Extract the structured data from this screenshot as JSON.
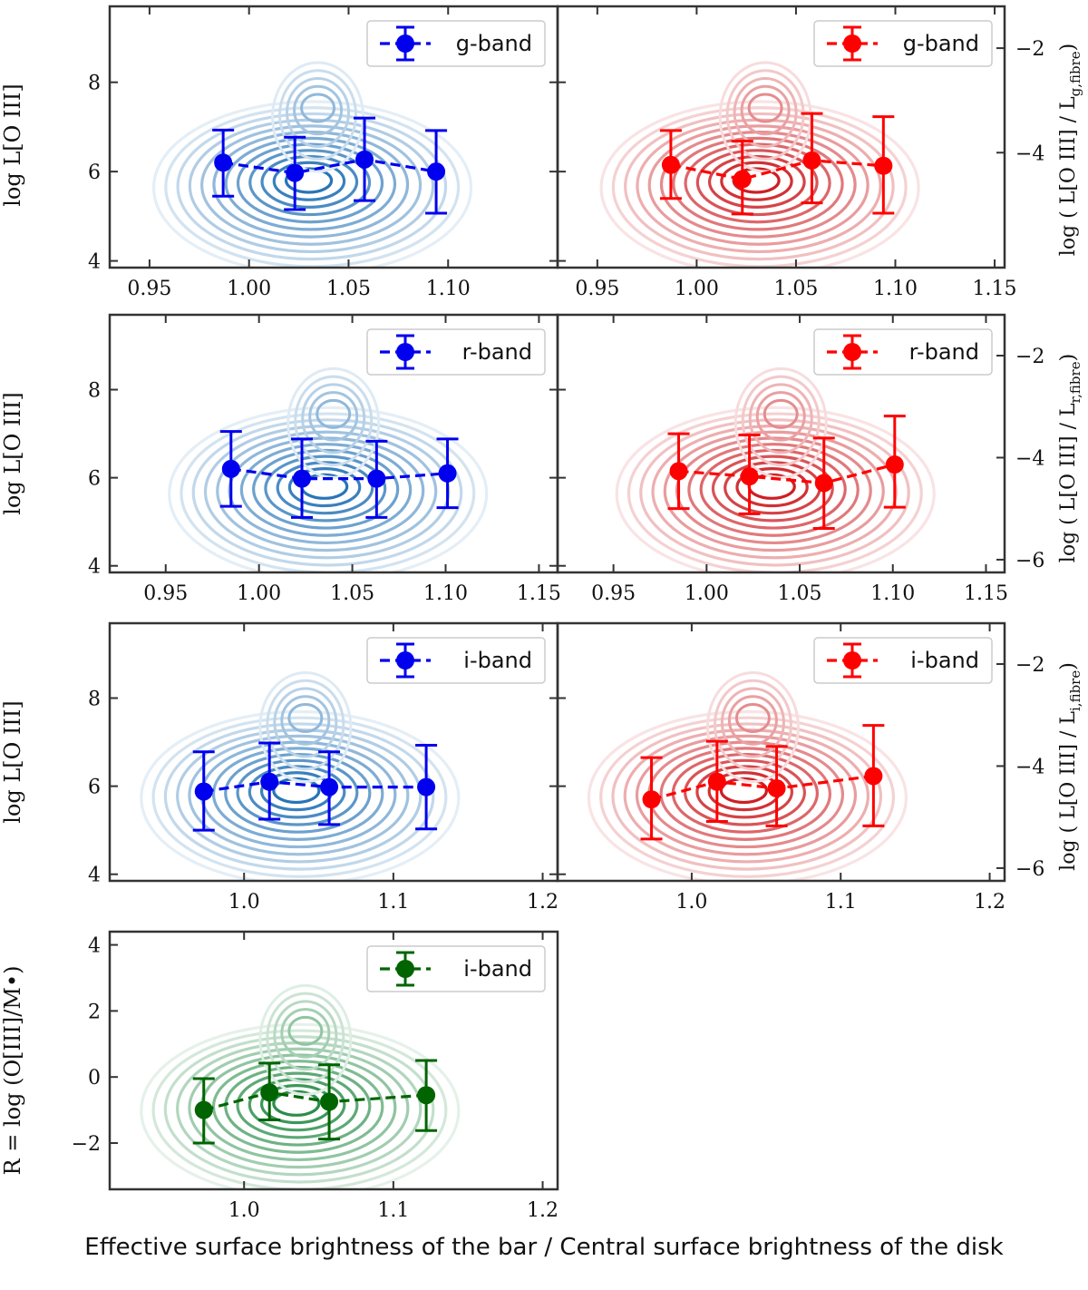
{
  "figure": {
    "xlabel": "Effective surface brightness of the bar / Central surface brightness of the disk",
    "left_ylabel": "log L[O III]",
    "right_ylabels": [
      "log ( L[O III] / L",
      "g,fibre",
      "r,fibre",
      "i,fibre",
      ")"
    ],
    "bottom_ylabel": "R = log (O[III]/M•)"
  },
  "colors": {
    "blue": "#0000ee",
    "red": "#ff0000",
    "green": "#006400",
    "kde_blue": "#2171b5",
    "kde_red": "#cb181d",
    "kde_green": "#238b45",
    "axes": "#333333"
  },
  "chart_data": [
    {
      "id": "g-blue",
      "type": "line",
      "legend": "g-band",
      "color_key": "blue",
      "kde_key": "kde_blue",
      "xlim": [
        0.93,
        1.155
      ],
      "xticks": [
        0.95,
        1.0,
        1.05,
        1.1
      ],
      "xtick_labels": [
        "0.95",
        "1.00",
        "1.05",
        "1.10"
      ],
      "ylim": [
        3.85,
        9.7
      ],
      "yticks": [
        4,
        6,
        8
      ],
      "ytick_labels": [
        "4",
        "6",
        "8"
      ],
      "x": [
        0.987,
        1.023,
        1.058,
        1.094
      ],
      "y": [
        6.2,
        5.97,
        6.27,
        6.0
      ],
      "yerr_low": [
        5.45,
        5.15,
        5.35,
        5.07
      ],
      "yerr_high": [
        6.93,
        6.77,
        7.2,
        6.92
      ],
      "kde_center": [
        1.03,
        5.8
      ]
    },
    {
      "id": "g-red",
      "type": "line",
      "legend": "g-band",
      "color_key": "red",
      "kde_key": "kde_red",
      "xlim": [
        0.93,
        1.155
      ],
      "xticks": [
        0.95,
        1.0,
        1.05,
        1.1,
        1.15
      ],
      "xtick_labels": [
        "0.95",
        "1.00",
        "1.05",
        "1.10",
        "1.15"
      ],
      "ylim": [
        3.85,
        9.7
      ],
      "yticks": [
        4,
        6,
        8
      ],
      "ytick_labels": [],
      "right_ylim": [
        -6.2,
        -1.2
      ],
      "right_yticks": [
        -4,
        -2
      ],
      "right_ytick_labels": [
        "−4",
        "−2"
      ],
      "x": [
        0.987,
        1.023,
        1.058,
        1.094
      ],
      "y": [
        6.15,
        5.83,
        6.25,
        6.13
      ],
      "yerr_low": [
        5.4,
        5.05,
        5.3,
        5.07
      ],
      "yerr_high": [
        6.92,
        6.68,
        7.3,
        7.23
      ],
      "kde_center": [
        1.03,
        5.8
      ]
    },
    {
      "id": "r-blue",
      "type": "line",
      "legend": "r-band",
      "color_key": "blue",
      "kde_key": "kde_blue",
      "xlim": [
        0.92,
        1.16
      ],
      "xticks": [
        0.95,
        1.0,
        1.05,
        1.1,
        1.15
      ],
      "xtick_labels": [
        "0.95",
        "1.00",
        "1.05",
        "1.10",
        "1.15"
      ],
      "ylim": [
        3.85,
        9.7
      ],
      "yticks": [
        4,
        6,
        8
      ],
      "ytick_labels": [
        "4",
        "6",
        "8"
      ],
      "x": [
        0.985,
        1.023,
        1.063,
        1.101
      ],
      "y": [
        6.2,
        5.98,
        5.98,
        6.1
      ],
      "yerr_low": [
        5.35,
        5.1,
        5.1,
        5.32
      ],
      "yerr_high": [
        7.05,
        6.88,
        6.83,
        6.88
      ],
      "kde_center": [
        1.035,
        5.8
      ]
    },
    {
      "id": "r-red",
      "type": "line",
      "legend": "r-band",
      "color_key": "red",
      "kde_key": "kde_red",
      "xlim": [
        0.92,
        1.16
      ],
      "xticks": [
        0.95,
        1.0,
        1.05,
        1.1,
        1.15
      ],
      "xtick_labels": [
        "0.95",
        "1.00",
        "1.05",
        "1.10",
        "1.15"
      ],
      "ylim": [
        3.85,
        9.7
      ],
      "yticks": [
        4,
        6,
        8
      ],
      "ytick_labels": [],
      "right_ylim": [
        -6.25,
        -1.2
      ],
      "right_yticks": [
        -6,
        -4,
        -2
      ],
      "right_ytick_labels": [
        "−6",
        "−4",
        "−2"
      ],
      "x": [
        0.985,
        1.023,
        1.063,
        1.101
      ],
      "y": [
        6.15,
        6.03,
        5.88,
        6.3
      ],
      "yerr_low": [
        5.3,
        5.18,
        4.85,
        5.33
      ],
      "yerr_high": [
        7.0,
        6.97,
        6.9,
        7.4
      ],
      "kde_center": [
        1.035,
        5.8
      ]
    },
    {
      "id": "i-blue",
      "type": "line",
      "legend": "i-band",
      "color_key": "blue",
      "kde_key": "kde_blue",
      "xlim": [
        0.91,
        1.21
      ],
      "xticks": [
        1.0,
        1.1,
        1.2
      ],
      "xtick_labels": [
        "1.0",
        "1.1",
        "1.2"
      ],
      "ylim": [
        3.85,
        9.7
      ],
      "yticks": [
        4,
        6,
        8
      ],
      "ytick_labels": [
        "4",
        "6",
        "8"
      ],
      "x": [
        0.973,
        1.017,
        1.057,
        1.122
      ],
      "y": [
        5.88,
        6.1,
        5.98,
        5.98
      ],
      "yerr_low": [
        5.0,
        5.25,
        5.13,
        5.03
      ],
      "yerr_high": [
        6.78,
        6.98,
        6.78,
        6.93
      ],
      "kde_center": [
        1.035,
        5.9
      ]
    },
    {
      "id": "i-red",
      "type": "line",
      "legend": "i-band",
      "color_key": "red",
      "kde_key": "kde_red",
      "xlim": [
        0.91,
        1.21
      ],
      "xticks": [
        1.0,
        1.1,
        1.2
      ],
      "xtick_labels": [
        "1.0",
        "1.1",
        "1.2"
      ],
      "ylim": [
        3.85,
        9.7
      ],
      "yticks": [
        4,
        6,
        8
      ],
      "ytick_labels": [],
      "right_ylim": [
        -6.25,
        -1.2
      ],
      "right_yticks": [
        -6,
        -4,
        -2
      ],
      "right_ytick_labels": [
        "−6",
        "−4",
        "−2"
      ],
      "x": [
        0.973,
        1.017,
        1.057,
        1.122
      ],
      "y": [
        5.7,
        6.1,
        5.95,
        6.23
      ],
      "yerr_low": [
        4.8,
        5.2,
        5.1,
        5.1
      ],
      "yerr_high": [
        6.65,
        7.02,
        6.9,
        7.38
      ],
      "kde_center": [
        1.035,
        5.9
      ]
    },
    {
      "id": "i-green",
      "type": "line",
      "legend": "i-band",
      "color_key": "green",
      "kde_key": "kde_green",
      "xlim": [
        0.91,
        1.21
      ],
      "xticks": [
        1.0,
        1.1,
        1.2
      ],
      "xtick_labels": [
        "1.0",
        "1.1",
        "1.2"
      ],
      "ylim": [
        -3.4,
        4.4
      ],
      "yticks": [
        -2,
        0,
        2,
        4
      ],
      "ytick_labels": [
        "−2",
        "0",
        "2",
        "4"
      ],
      "x": [
        0.973,
        1.017,
        1.057,
        1.122
      ],
      "y": [
        -1.0,
        -0.47,
        -0.75,
        -0.55
      ],
      "yerr_low": [
        -2.0,
        -1.3,
        -1.88,
        -1.62
      ],
      "yerr_high": [
        -0.05,
        0.42,
        0.37,
        0.5
      ],
      "kde_center": [
        1.035,
        -0.8
      ]
    }
  ]
}
